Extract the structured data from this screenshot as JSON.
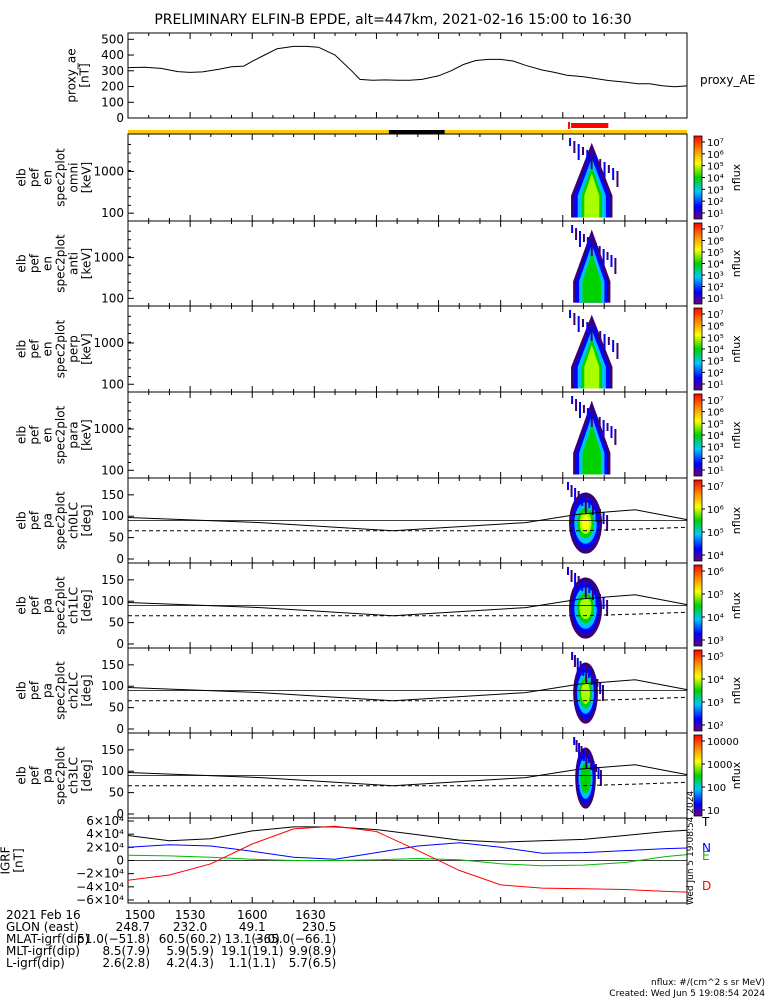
{
  "title": "PRELIMINARY ELFIN-B EPDE, alt=447km, 2021-02-16 15:00 to 16:30",
  "colors": {
    "black": "#000000",
    "yellow": "#ffcc00",
    "red": "#ff0000",
    "blue": "#0000ff",
    "green": "#00bb00"
  },
  "chart_data": [
    {
      "type": "line",
      "panel": "proxy_ae",
      "ylabel": [
        "proxy_ae",
        "[nT]"
      ],
      "legend": "proxy_AE",
      "yticks": [
        "500",
        "400",
        "300",
        "200",
        "100",
        "0"
      ],
      "ylim": [
        0,
        540
      ],
      "x_minutes": [
        0,
        8,
        16,
        24,
        30,
        36,
        44,
        50,
        56,
        60,
        66,
        72,
        80,
        86,
        92,
        100,
        108,
        112,
        118,
        124,
        130,
        136,
        142,
        150,
        156,
        162,
        168,
        174,
        180,
        186,
        192,
        200,
        206,
        212,
        220,
        226,
        232,
        240,
        246,
        252,
        258,
        264,
        270
      ],
      "values": [
        320,
        322,
        315,
        295,
        290,
        293,
        310,
        325,
        330,
        360,
        400,
        440,
        455,
        455,
        450,
        400,
        300,
        245,
        240,
        242,
        240,
        240,
        245,
        268,
        300,
        340,
        365,
        372,
        372,
        362,
        335,
        305,
        290,
        272,
        262,
        250,
        238,
        228,
        218,
        218,
        205,
        198,
        204
      ]
    },
    {
      "type": "bar",
      "panel": "status_bar",
      "segments": [
        {
          "start": 0,
          "end": 126,
          "color": "#ffcc00"
        },
        {
          "start": 126,
          "end": 153,
          "color": "#000000"
        },
        {
          "start": 153,
          "end": 270,
          "color": "#ffcc00"
        }
      ],
      "science_zone": {
        "start": 214,
        "end": 232,
        "color": "#ff0000"
      }
    },
    {
      "type": "heatmap",
      "panel": "elb_pef_en_spec2plot_omni",
      "ylabel": [
        "elb",
        "pef",
        "en",
        "spec2plot",
        "omni",
        "[keV]"
      ],
      "yticks": [
        "1000",
        "100"
      ],
      "colorbar": {
        "label": "nflux",
        "ticks": [
          "10⁷",
          "10⁶",
          "10⁵",
          "10⁴",
          "10³",
          "10²",
          "10¹"
        ]
      },
      "activity": {
        "start": 214,
        "end": 234,
        "peak": 0.78
      }
    },
    {
      "type": "heatmap",
      "panel": "elb_pef_en_spec2plot_anti",
      "ylabel": [
        "elb",
        "pef",
        "en",
        "spec2plot",
        "anti",
        "[keV]"
      ],
      "yticks": [
        "1000",
        "100"
      ],
      "colorbar": {
        "label": "nflux",
        "ticks": [
          "10⁷",
          "10⁶",
          "10⁵",
          "10⁴",
          "10³",
          "10²",
          "10¹"
        ]
      },
      "activity": {
        "start": 215,
        "end": 233,
        "peak": 0.6
      }
    },
    {
      "type": "heatmap",
      "panel": "elb_pef_en_spec2plot_perp",
      "ylabel": [
        "elb",
        "pef",
        "en",
        "spec2plot",
        "perp",
        "[keV]"
      ],
      "yticks": [
        "1000",
        "100"
      ],
      "colorbar": {
        "label": "nflux",
        "ticks": [
          "10⁷",
          "10⁶",
          "10⁵",
          "10⁴",
          "10³",
          "10²",
          "10¹"
        ]
      },
      "activity": {
        "start": 214,
        "end": 234,
        "peak": 0.8
      }
    },
    {
      "type": "heatmap",
      "panel": "elb_pef_en_spec2plot_para",
      "ylabel": [
        "elb",
        "pef",
        "en",
        "spec2plot",
        "para",
        "[keV]"
      ],
      "yticks": [
        "1000",
        "100"
      ],
      "colorbar": {
        "label": "nflux",
        "ticks": [
          "10⁷",
          "10⁶",
          "10⁵",
          "10⁴",
          "10³",
          "10²",
          "10¹"
        ]
      },
      "activity": {
        "start": 215,
        "end": 233,
        "peak": 0.6
      }
    },
    {
      "type": "heatmap",
      "panel": "elb_pef_pa_spec2plot_ch0LC",
      "ylabel": [
        "elb",
        "pef",
        "pa",
        "spec2plot",
        "ch0LC",
        "[deg]"
      ],
      "yticks": [
        "150",
        "100",
        "50",
        "0"
      ],
      "ylim": [
        0,
        180
      ],
      "colorbar": {
        "label": "nflux",
        "ticks": [
          "10⁷",
          "10⁶",
          "10⁵",
          "10⁴"
        ]
      },
      "activity": {
        "start": 213,
        "end": 229,
        "peak": 0.85
      },
      "lines": {
        "x": [
          0,
          64,
          128,
          192,
          218,
          245,
          270
        ],
        "solid": [
          97,
          85,
          66,
          85,
          105,
          115,
          92
        ],
        "dashed": [
          66,
          66,
          66,
          66,
          66,
          70,
          74
        ]
      }
    },
    {
      "type": "heatmap",
      "panel": "elb_pef_pa_spec2plot_ch1LC",
      "ylabel": [
        "elb",
        "pef",
        "pa",
        "spec2plot",
        "ch1LC",
        "[deg]"
      ],
      "yticks": [
        "150",
        "100",
        "50",
        "0"
      ],
      "ylim": [
        0,
        180
      ],
      "colorbar": {
        "label": "nflux",
        "ticks": [
          "10⁶",
          "10⁵",
          "10⁴",
          "10³"
        ]
      },
      "activity": {
        "start": 213,
        "end": 229,
        "peak": 0.8
      },
      "lines": {
        "x": [
          0,
          64,
          128,
          192,
          218,
          245,
          270
        ],
        "solid": [
          97,
          85,
          66,
          85,
          105,
          115,
          92
        ],
        "dashed": [
          66,
          66,
          66,
          66,
          66,
          70,
          74
        ]
      }
    },
    {
      "type": "heatmap",
      "panel": "elb_pef_pa_spec2plot_ch2LC",
      "ylabel": [
        "elb",
        "pef",
        "pa",
        "spec2plot",
        "ch2LC",
        "[deg]"
      ],
      "yticks": [
        "150",
        "100",
        "50",
        "0"
      ],
      "ylim": [
        0,
        180
      ],
      "colorbar": {
        "label": "nflux",
        "ticks": [
          "10⁵",
          "10⁴",
          "10³",
          "10²"
        ]
      },
      "activity": {
        "start": 215,
        "end": 227,
        "peak": 0.75
      },
      "lines": {
        "x": [
          0,
          64,
          128,
          192,
          218,
          245,
          270
        ],
        "solid": [
          97,
          85,
          66,
          85,
          105,
          115,
          92
        ],
        "dashed": [
          66,
          66,
          66,
          66,
          66,
          70,
          74
        ]
      }
    },
    {
      "type": "heatmap",
      "panel": "elb_pef_pa_spec2plot_ch3LC",
      "ylabel": [
        "elb",
        "pef",
        "pa",
        "spec2plot",
        "ch3LC",
        "[deg]"
      ],
      "yticks": [
        "150",
        "100",
        "50",
        "0"
      ],
      "ylim": [
        0,
        180
      ],
      "colorbar": {
        "label": "nflux",
        "ticks": [
          "10000",
          "1000",
          "100",
          "10"
        ]
      },
      "activity": {
        "start": 216,
        "end": 226,
        "peak": 0.65
      },
      "lines": {
        "x": [
          0,
          64,
          128,
          192,
          218,
          245,
          270
        ],
        "solid": [
          97,
          85,
          66,
          85,
          105,
          115,
          92
        ],
        "dashed": [
          66,
          66,
          66,
          66,
          66,
          70,
          74
        ]
      }
    },
    {
      "type": "line",
      "panel": "igrf",
      "ylabel": [
        "IGRF",
        "[nT]"
      ],
      "yticks": [
        "6×10⁴",
        "4×10⁴",
        "2×10⁴",
        "0",
        "−2×10⁴",
        "−4×10⁴",
        "−6×10⁴"
      ],
      "ylim": [
        -60000,
        60000
      ],
      "x": [
        0,
        20,
        40,
        60,
        80,
        100,
        120,
        140,
        160,
        180,
        200,
        220,
        240,
        260,
        270
      ],
      "series": [
        {
          "name": "T",
          "color": "#000000",
          "values": [
            38000,
            30000,
            33000,
            45000,
            51000,
            51000,
            47000,
            39000,
            31000,
            28000,
            30000,
            32000,
            38000,
            44000,
            46000
          ]
        },
        {
          "name": "N",
          "color": "#0000ff",
          "values": [
            20000,
            24000,
            22000,
            14000,
            5000,
            2000,
            12000,
            22000,
            27000,
            20000,
            11000,
            12000,
            15000,
            18000,
            19000
          ]
        },
        {
          "name": "E",
          "color": "#00bb00",
          "values": [
            8000,
            7000,
            5000,
            2000,
            0,
            0,
            1000,
            3000,
            1000,
            -5000,
            -8000,
            -7000,
            -3000,
            6000,
            9000
          ]
        },
        {
          "name": "D",
          "color": "#ff0000",
          "values": [
            -30000,
            -22000,
            -5000,
            25000,
            48000,
            52000,
            44000,
            15000,
            -15000,
            -37000,
            -42000,
            -43000,
            -44000,
            -47000,
            -48000
          ]
        }
      ]
    }
  ],
  "xaxis": {
    "ticks": [
      "1500",
      "1530",
      "1600",
      "1630"
    ],
    "rows": [
      {
        "label": "2021 Feb 16",
        "values": [
          "1500",
          "1530",
          "1600",
          "1630"
        ]
      },
      {
        "label": "GLON (east)",
        "values": [
          "248.7",
          "232.0",
          "49.1",
          "230.5"
        ]
      },
      {
        "label": "MLAT-igrf(dip)",
        "values": [
          "51.0(−51.8)",
          "60.5(60.2)",
          "13.1(3.0)",
          "−65.0(−66.1)"
        ]
      },
      {
        "label": "MLT-igrf(dip)",
        "values": [
          "8.5(7.9)",
          "5.9(5.9)",
          "19.1(19.1)",
          "9.9(8.9)"
        ]
      },
      {
        "label": "L-igrf(dip)",
        "values": [
          "2.6(2.8)",
          "4.2(4.3)",
          "1.1(1.1)",
          "5.7(6.5)"
        ]
      }
    ]
  },
  "footer": {
    "units": "nflux: #/(cm^2 s sr MeV)",
    "created": "Created: Wed Jun  5 19:08:54 2024",
    "side_stamp": "Wed Jun  5 19:08:54 2024"
  }
}
